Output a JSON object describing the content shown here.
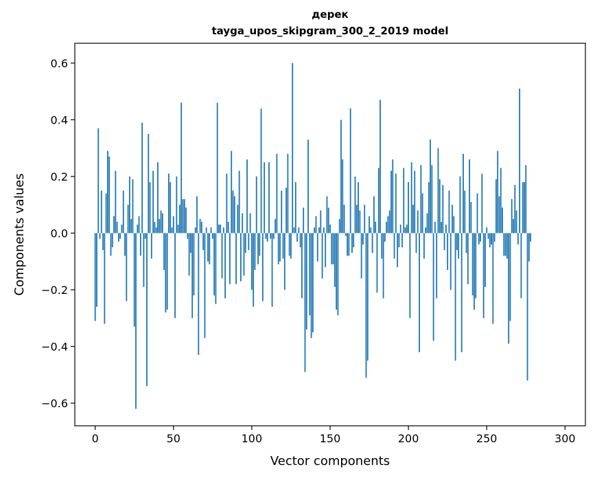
{
  "chart_data": {
    "type": "bar",
    "title": "дерек",
    "subtitle": "tayga_upos_skipgram_300_2_2019 model",
    "xlabel": "Vector components",
    "ylabel": "Components values",
    "xlim": [
      -13,
      313
    ],
    "ylim": [
      -0.68,
      0.67
    ],
    "x_ticks": [
      0,
      50,
      100,
      150,
      200,
      250,
      300
    ],
    "x_tick_labels": [
      "0",
      "50",
      "100",
      "150",
      "200",
      "250",
      "300"
    ],
    "y_ticks": [
      -0.6,
      -0.4,
      -0.2,
      0.0,
      0.2,
      0.4,
      0.6
    ],
    "y_tick_labels": [
      "−0.6",
      "−0.4",
      "−0.2",
      "0.0",
      "0.2",
      "0.4",
      "0.6"
    ],
    "grid": false,
    "bar_color": "#1f77b4",
    "values": [
      -0.31,
      -0.26,
      0.37,
      -0.02,
      0.15,
      -0.06,
      -0.32,
      0.14,
      0.29,
      0.27,
      -0.08,
      -0.05,
      0.06,
      0.22,
      0.04,
      -0.03,
      -0.02,
      0.03,
      0.15,
      -0.08,
      -0.24,
      0.1,
      0.2,
      0.05,
      0.19,
      -0.33,
      -0.62,
      0.03,
      0.06,
      -0.08,
      0.39,
      -0.19,
      -0.02,
      -0.54,
      0.35,
      0.18,
      -0.09,
      0.22,
      0.04,
      0.02,
      0.25,
      0.05,
      0.08,
      0.07,
      -0.13,
      -0.28,
      -0.27,
      0.21,
      0.18,
      0.02,
      0.06,
      -0.3,
      0.2,
      0.03,
      0.1,
      0.46,
      0.12,
      0.12,
      0.09,
      -0.02,
      -0.15,
      -0.07,
      -0.3,
      -0.22,
      0.02,
      0.13,
      -0.43,
      0.05,
      0.04,
      -0.06,
      -0.37,
      0.02,
      -0.1,
      -0.11,
      0.02,
      -0.02,
      -0.22,
      -0.25,
      0.46,
      0.03,
      0.03,
      -0.16,
      0.02,
      -0.23,
      0.21,
      0.04,
      -0.18,
      0.29,
      0.15,
      0.13,
      -0.18,
      0.1,
      0.22,
      -0.17,
      0.07,
      -0.15,
      -0.07,
      0.26,
      -0.06,
      0.07,
      -0.2,
      -0.26,
      -0.13,
      0.2,
      -0.11,
      -0.08,
      0.44,
      -0.24,
      0.25,
      -0.02,
      -0.03,
      0.25,
      -0.02,
      -0.26,
      -0.02,
      0.05,
      0.28,
      -0.11,
      -0.1,
      0.15,
      -0.09,
      -0.2,
      0.16,
      0.28,
      -0.08,
      -0.09,
      0.6,
      0.02,
      0.18,
      -0.03,
      0.02,
      -0.05,
      -0.23,
      0.09,
      -0.49,
      -0.34,
      0.33,
      -0.29,
      -0.37,
      -0.35,
      0.02,
      0.06,
      -0.1,
      0.02,
      0.08,
      -0.16,
      0.02,
      -0.12,
      0.13,
      0.09,
      0.03,
      -0.11,
      -0.11,
      -0.19,
      -0.27,
      -0.29,
      0.05,
      0.4,
      0.26,
      0.1,
      -0.01,
      -0.08,
      -0.08,
      0.44,
      -0.07,
      -0.05,
      0.2,
      0.1,
      0.18,
      0.08,
      -0.16,
      -0.04,
      0.1,
      -0.51,
      -0.45,
      0.06,
      0.02,
      -0.07,
      0.13,
      0.04,
      -0.21,
      0.23,
      0.47,
      -0.09,
      -0.23,
      -0.03,
      0.04,
      0.06,
      0.08,
      0.22,
      0.26,
      -0.09,
      0.21,
      -0.12,
      -0.05,
      0.03,
      -0.05,
      0.23,
      0.02,
      0.03,
      0.18,
      -0.3,
      0.25,
      0.1,
      0.22,
      -0.07,
      0.08,
      -0.42,
      0.24,
      0.14,
      -0.09,
      0.02,
      0.07,
      0.18,
      0.33,
      0.24,
      -0.38,
      0.04,
      -0.23,
      0.3,
      0.19,
      0.04,
      0.17,
      -0.06,
      0.03,
      -0.13,
      0.15,
      -0.2,
      0.1,
      0.06,
      -0.45,
      -0.06,
      -0.09,
      0.2,
      -0.42,
      0.28,
      0.15,
      -0.07,
      -0.18,
      0.26,
      0.11,
      -0.22,
      -0.27,
      -0.23,
      0.14,
      -0.04,
      -0.03,
      0.21,
      -0.3,
      -0.19,
      0.02,
      -0.02,
      -0.05,
      -0.04,
      -0.32,
      -0.03,
      0.19,
      0.29,
      0.13,
      0.23,
      0.09,
      -0.08,
      -0.08,
      -0.09,
      -0.39,
      -0.31,
      0.12,
      0.05,
      0.17,
      0.08,
      -0.04,
      0.51,
      -0.23,
      0.18,
      0.18,
      0.24,
      -0.52,
      -0.1,
      -0.03
    ]
  }
}
